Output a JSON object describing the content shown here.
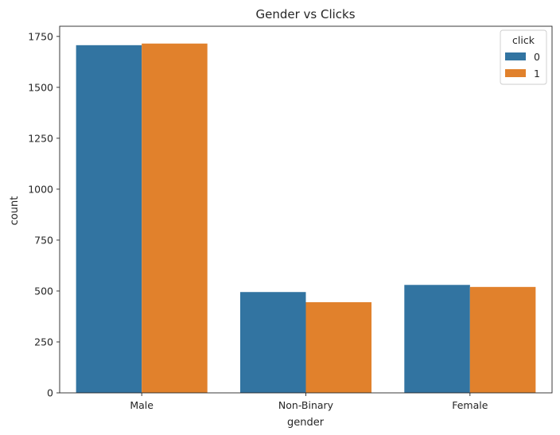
{
  "chart_data": {
    "type": "bar",
    "title": "Gender vs Clicks",
    "xlabel": "gender",
    "ylabel": "count",
    "categories": [
      "Male",
      "Non-Binary",
      "Female"
    ],
    "series": [
      {
        "name": "0",
        "color": "#3274a1",
        "values": [
          1707,
          495,
          530
        ]
      },
      {
        "name": "1",
        "color": "#e1812c",
        "values": [
          1715,
          445,
          520
        ]
      }
    ],
    "ylim": [
      0,
      1800
    ],
    "yticks": [
      0,
      250,
      500,
      750,
      1000,
      1250,
      1500,
      1750
    ],
    "grid": false,
    "legend": {
      "title": "click",
      "position": "top-right"
    }
  }
}
